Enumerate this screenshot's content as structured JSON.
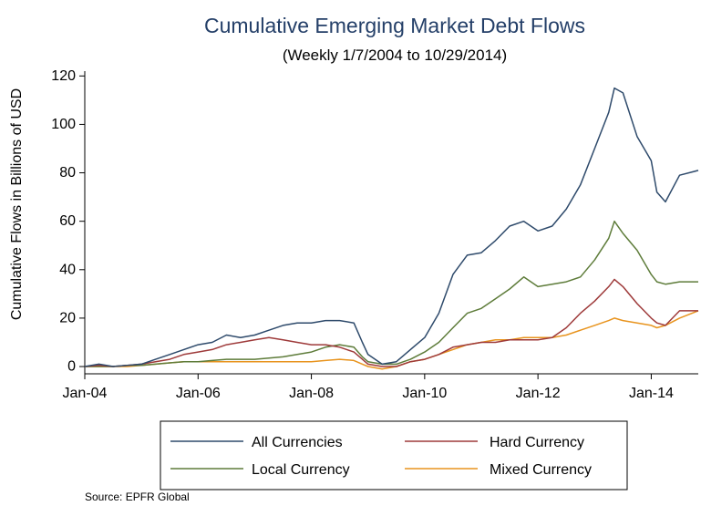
{
  "chart_data": {
    "type": "line",
    "title": "Cumulative Emerging Market Debt Flows",
    "subtitle": "(Weekly 1/7/2004 to 10/29/2014)",
    "xlabel": "",
    "ylabel": "Cumulative Flows in Billions of USD",
    "xlim": [
      2004.0,
      2014.83
    ],
    "ylim": [
      -3,
      122
    ],
    "x_ticks": [
      2004,
      2006,
      2008,
      2010,
      2012,
      2014
    ],
    "x_tick_labels": [
      "Jan-04",
      "Jan-06",
      "Jan-08",
      "Jan-10",
      "Jan-12",
      "Jan-14"
    ],
    "y_ticks": [
      0,
      20,
      40,
      60,
      80,
      100,
      120
    ],
    "y_tick_labels": [
      "0",
      "20",
      "40",
      "60",
      "80",
      "100",
      "120"
    ],
    "grid": false,
    "legend_position": "bottom",
    "x": [
      2004.0,
      2004.25,
      2004.5,
      2004.75,
      2005.0,
      2005.25,
      2005.5,
      2005.75,
      2006.0,
      2006.25,
      2006.5,
      2006.75,
      2007.0,
      2007.25,
      2007.5,
      2007.75,
      2008.0,
      2008.25,
      2008.5,
      2008.75,
      2008.9,
      2009.0,
      2009.25,
      2009.5,
      2009.75,
      2010.0,
      2010.25,
      2010.5,
      2010.75,
      2011.0,
      2011.25,
      2011.5,
      2011.75,
      2012.0,
      2012.25,
      2012.5,
      2012.75,
      2013.0,
      2013.25,
      2013.35,
      2013.5,
      2013.75,
      2014.0,
      2014.1,
      2014.25,
      2014.5,
      2014.83
    ],
    "series": [
      {
        "name": "All Currencies",
        "color": "#2e4a6b",
        "values": [
          0,
          1,
          0,
          0.5,
          1,
          3,
          5,
          7,
          9,
          10,
          13,
          12,
          13,
          15,
          17,
          18,
          18,
          19,
          19,
          18,
          10,
          5,
          1,
          2,
          7,
          12,
          22,
          38,
          46,
          47,
          52,
          58,
          60,
          56,
          58,
          65,
          75,
          90,
          105,
          115,
          113,
          95,
          85,
          72,
          68,
          79,
          81
        ]
      },
      {
        "name": "Hard Currency",
        "color": "#9e3a3a",
        "values": [
          0,
          0.5,
          0,
          0.5,
          1,
          2,
          3,
          5,
          6,
          7,
          9,
          10,
          11,
          12,
          11,
          10,
          9,
          9,
          8,
          6,
          3,
          1,
          0,
          0,
          2,
          3,
          5,
          8,
          9,
          10,
          10,
          11,
          11,
          11,
          12,
          16,
          22,
          27,
          33,
          36,
          33,
          26,
          20,
          18,
          17,
          23,
          23
        ]
      },
      {
        "name": "Local Currency",
        "color": "#5e7c3a",
        "values": [
          0,
          0,
          0,
          0.5,
          0.5,
          1,
          1.5,
          2,
          2,
          2.5,
          3,
          3,
          3,
          3.5,
          4,
          5,
          6,
          8,
          9,
          8,
          4,
          2,
          1,
          1,
          3,
          6,
          10,
          16,
          22,
          24,
          28,
          32,
          37,
          33,
          34,
          35,
          37,
          44,
          53,
          60,
          55,
          48,
          38,
          35,
          34,
          35,
          35
        ]
      },
      {
        "name": "Mixed Currency",
        "color": "#e8941e",
        "values": [
          0,
          0,
          0,
          0,
          0.5,
          1,
          1.5,
          2,
          2,
          2,
          2,
          2,
          2,
          2,
          2,
          2,
          2,
          2.5,
          3,
          2.5,
          1,
          0,
          -1,
          0,
          2,
          3,
          5,
          7,
          9,
          10,
          11,
          11,
          12,
          12,
          12,
          13,
          15,
          17,
          19,
          20,
          19,
          18,
          17,
          16,
          17,
          20,
          23
        ]
      }
    ],
    "legend": {
      "entries": [
        "All Currencies",
        "Hard Currency",
        "Local Currency",
        "Mixed Currency"
      ]
    },
    "source": "Source: EPFR Global"
  },
  "colors": {
    "title": "#243f68",
    "axis": "#000000"
  }
}
